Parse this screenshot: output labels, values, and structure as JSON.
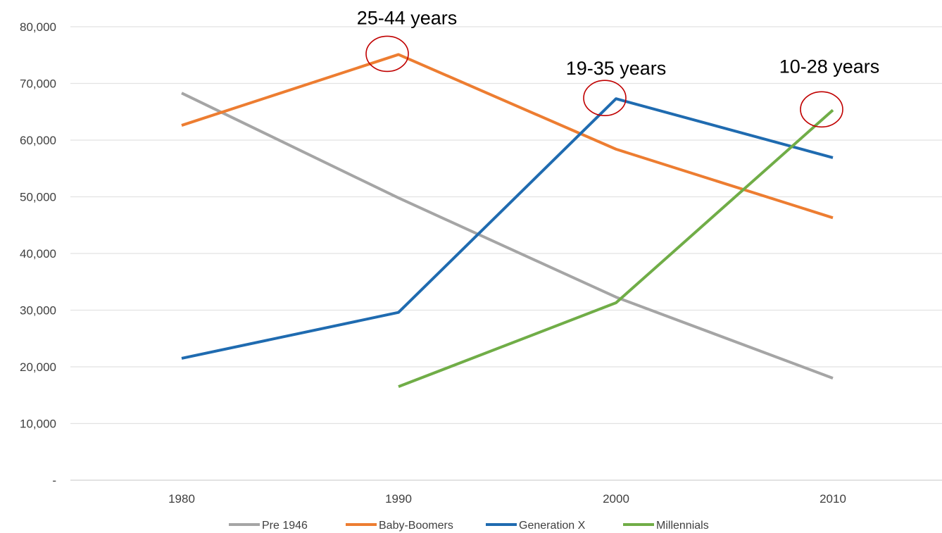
{
  "chart_data": {
    "type": "line",
    "title": "",
    "xlabel": "",
    "ylabel": "",
    "categories": [
      "1980",
      "1990",
      "2000",
      "2010"
    ],
    "ylim": [
      0,
      80000
    ],
    "y_ticks": [
      0,
      10000,
      20000,
      30000,
      40000,
      50000,
      60000,
      70000,
      80000
    ],
    "y_tick_labels": [
      "-",
      "10,000",
      "20,000",
      "30,000",
      "40,000",
      "50,000",
      "60,000",
      "70,000",
      "80,000"
    ],
    "grid": true,
    "legend_position": "bottom",
    "series": [
      {
        "name": "Pre 1946",
        "color": "#A5A5A5",
        "values": [
          68300,
          49800,
          32300,
          18000
        ]
      },
      {
        "name": "Baby-Boomers",
        "color": "#ED7D31",
        "values": [
          62600,
          75100,
          58400,
          46300
        ]
      },
      {
        "name": "Generation X",
        "color": "#1F6BB0",
        "values": [
          21500,
          29600,
          67300,
          56900
        ]
      },
      {
        "name": "Millennials",
        "color": "#70AD47",
        "values": [
          null,
          16500,
          31300,
          65300
        ]
      }
    ],
    "annotations": [
      {
        "text": "25-44 years",
        "category": "1990",
        "series": "Baby-Boomers",
        "value": 75100,
        "circle_color": "#C00000"
      },
      {
        "text": "19-35 years",
        "category": "2000",
        "series": "Generation X",
        "value": 67300,
        "circle_color": "#C00000"
      },
      {
        "text": "10-28 years",
        "category": "2010",
        "series": "Millennials",
        "value": 65300,
        "circle_color": "#C00000"
      }
    ]
  }
}
